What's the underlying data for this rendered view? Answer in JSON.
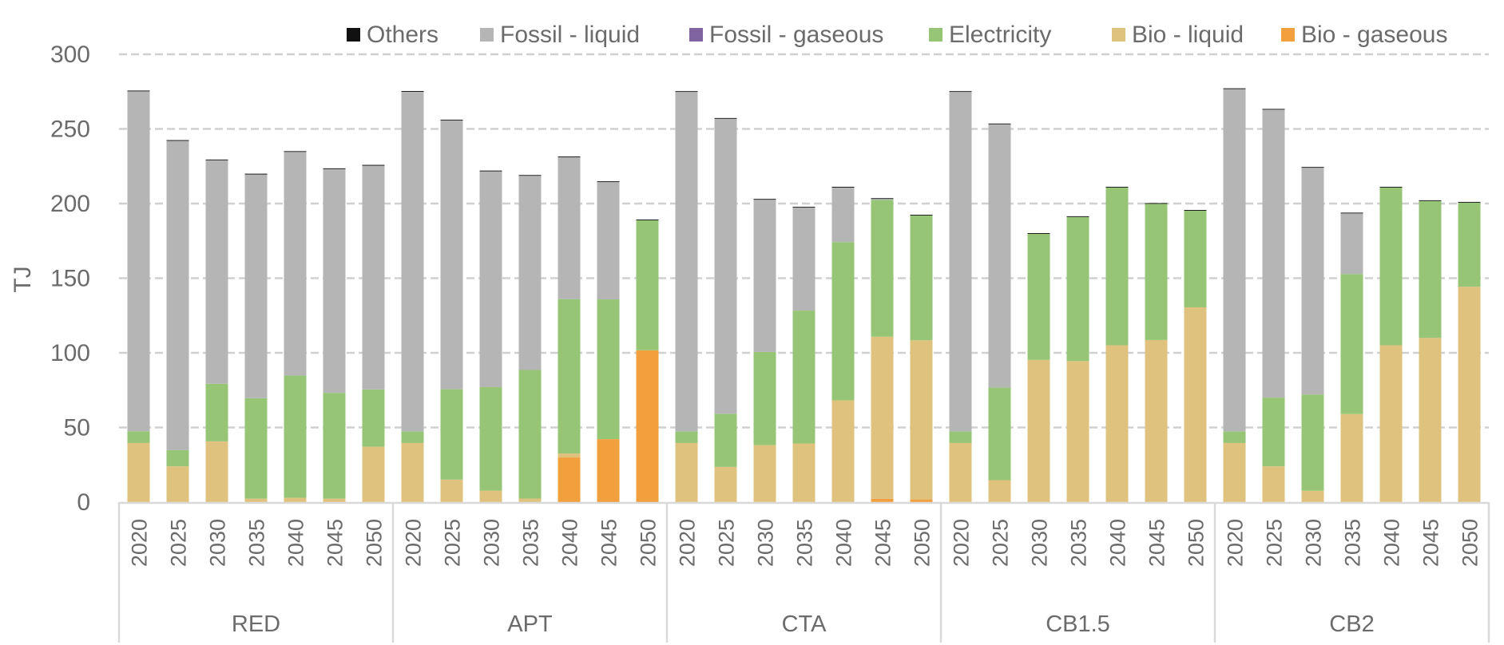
{
  "chart_data": {
    "type": "bar",
    "stacked": true,
    "title": "",
    "xlabel": "",
    "ylabel": "TJ",
    "ylim": [
      0,
      300
    ],
    "yticks": [
      "0",
      "50",
      "100",
      "150",
      "200",
      "250",
      "300"
    ],
    "grid": true,
    "legend_position": "top-right",
    "groups": [
      "RED",
      "APT",
      "CTA",
      "CB1.5",
      "CB2"
    ],
    "categories": [
      "2020",
      "2025",
      "2030",
      "2035",
      "2040",
      "2045",
      "2050"
    ],
    "series": [
      {
        "name": "Bio - gaseous",
        "color": "#F2A03D",
        "values": [
          [
            0,
            0,
            0,
            0,
            0,
            0,
            0
          ],
          [
            0,
            0,
            0,
            0,
            29.9,
            42.2,
            101.7
          ],
          [
            0,
            0,
            0,
            0,
            0,
            2.2,
            1.8
          ],
          [
            0,
            0,
            0,
            0,
            0,
            0,
            0
          ],
          [
            0,
            0,
            0,
            0,
            0,
            0,
            0
          ]
        ]
      },
      {
        "name": "Bio - liquid",
        "color": "#DFC27D",
        "values": [
          [
            39.6,
            24.0,
            40.7,
            2.3,
            2.9,
            2.3,
            37.1
          ],
          [
            39.6,
            15.1,
            7.7,
            2.4,
            2.7,
            0,
            0
          ],
          [
            39.6,
            23.6,
            38.2,
            39.3,
            68.2,
            108.6,
            106.6
          ],
          [
            39.6,
            14.7,
            95.3,
            94.5,
            105.1,
            108.6,
            130.5
          ],
          [
            39.6,
            24.0,
            7.6,
            59.0,
            105.1,
            110.0,
            144.3
          ]
        ]
      },
      {
        "name": "Electricity",
        "color": "#96C675",
        "values": [
          [
            7.9,
            10.8,
            38.6,
            67.3,
            81.9,
            70.9,
            38.4
          ],
          [
            7.8,
            60.5,
            69.3,
            86.1,
            103.4,
            93.6,
            87.1
          ],
          [
            7.8,
            35.6,
            62.4,
            89.0,
            106.0,
            91.7,
            83.6
          ],
          [
            7.8,
            62.0,
            84.4,
            96.5,
            105.6,
            91.2,
            64.7
          ],
          [
            7.8,
            46.0,
            64.5,
            93.8,
            105.6,
            91.7,
            56.3
          ]
        ]
      },
      {
        "name": "Fossil - gaseous",
        "color": "#8064A2",
        "values": [
          [
            0,
            0,
            0,
            0,
            0,
            0,
            0
          ],
          [
            0,
            0,
            0,
            0,
            0,
            0,
            0
          ],
          [
            0,
            0,
            0,
            0,
            0,
            0,
            0
          ],
          [
            0,
            0,
            0,
            0,
            0,
            0,
            0
          ],
          [
            0,
            0,
            0,
            0,
            0,
            0,
            0
          ]
        ]
      },
      {
        "name": "Fossil - liquid",
        "color": "#B5B5B5",
        "values": [
          [
            227.7,
            207.2,
            149.7,
            149.9,
            149.8,
            149.9,
            149.9
          ],
          [
            227.5,
            180.1,
            144.6,
            130.1,
            95.0,
            78.6,
            0
          ],
          [
            227.4,
            197.6,
            102.0,
            69.0,
            36.5,
            0.6,
            0
          ],
          [
            227.4,
            176.4,
            0,
            0,
            0,
            0,
            0
          ],
          [
            229.3,
            192.9,
            151.9,
            40.6,
            0,
            0,
            0
          ]
        ]
      },
      {
        "name": "Others",
        "color": "#111111",
        "values": [
          [
            0.5,
            0.5,
            0.5,
            0.5,
            0.5,
            0.5,
            0.5
          ],
          [
            0.5,
            0.5,
            0.5,
            0.5,
            0.5,
            0.5,
            0.5
          ],
          [
            0.5,
            0.5,
            0.5,
            0.5,
            0.5,
            0.5,
            0.5
          ],
          [
            0.5,
            0.5,
            0.5,
            0.5,
            0.5,
            0.5,
            0.5
          ],
          [
            0.5,
            0.5,
            0.5,
            0.5,
            0.5,
            0.5,
            0.5
          ]
        ]
      }
    ],
    "legend_order": [
      "Others",
      "Fossil - liquid",
      "Fossil - gaseous",
      "Electricity",
      "Bio - liquid",
      "Bio - gaseous"
    ]
  }
}
